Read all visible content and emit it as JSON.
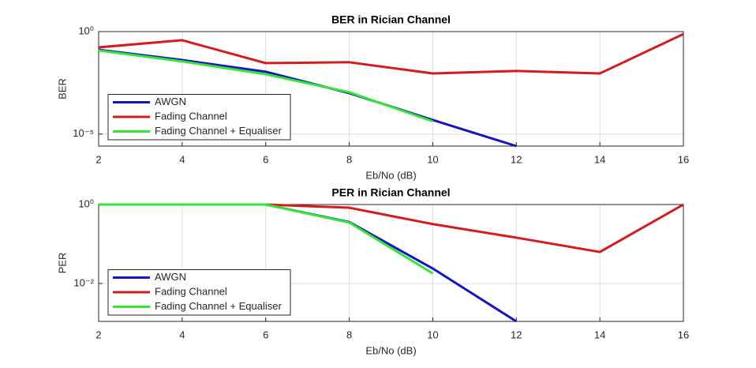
{
  "chart_data": [
    {
      "type": "line",
      "title": "BER in Rician Channel",
      "x_label": "Eb/No (dB)",
      "y_label": "BER",
      "yscale": "log",
      "grid": true,
      "legend": "lower left",
      "xlim": [
        2,
        16
      ],
      "xticks": [
        2,
        4,
        6,
        8,
        10,
        12,
        14,
        16
      ],
      "ylim": [
        2.6e-06,
        1
      ],
      "yticks": [
        {
          "value": 1e-05,
          "label": "10⁻⁵"
        },
        {
          "value": 1,
          "label": "10⁰"
        }
      ],
      "series": [
        {
          "name": "AWGN",
          "color": "#1414c4",
          "x": [
            2,
            4,
            6,
            8,
            10,
            12
          ],
          "values": [
            0.13,
            0.041,
            0.011,
            0.001,
            4.9e-05,
            2.6e-06
          ]
        },
        {
          "name": "Fading Channel",
          "color": "#d41c1c",
          "x": [
            2,
            4,
            6,
            8,
            10,
            12,
            14,
            16
          ],
          "values": [
            0.17,
            0.38,
            0.029,
            0.032,
            0.0091,
            0.012,
            0.0091,
            0.76
          ]
        },
        {
          "name": "Fading Channel + Equaliser",
          "color": "#33e633",
          "x": [
            2,
            4,
            6,
            8,
            10
          ],
          "values": [
            0.12,
            0.035,
            0.0083,
            0.0011,
            4.2e-05
          ]
        }
      ]
    },
    {
      "type": "line",
      "title": "PER in Rician Channel",
      "x_label": "Eb/No (dB)",
      "y_label": "PER",
      "yscale": "log",
      "grid": true,
      "legend": "lower left",
      "xlim": [
        2,
        16
      ],
      "xticks": [
        2,
        4,
        6,
        8,
        10,
        12,
        14,
        16
      ],
      "ylim": [
        0.0011,
        1
      ],
      "yticks": [
        {
          "value": 0.01,
          "label": "10⁻²"
        },
        {
          "value": 1,
          "label": "10⁰"
        }
      ],
      "series": [
        {
          "name": "AWGN",
          "color": "#1414c4",
          "x": [
            2,
            4,
            6,
            8,
            10,
            12
          ],
          "values": [
            1,
            1,
            1,
            0.36,
            0.024,
            0.0011
          ]
        },
        {
          "name": "Fading Channel",
          "color": "#d41c1c",
          "x": [
            2,
            4,
            6,
            8,
            10,
            12,
            14,
            16
          ],
          "values": [
            1,
            1,
            1,
            0.83,
            0.32,
            0.145,
            0.063,
            1
          ]
        },
        {
          "name": "Fading Channel + Equaliser",
          "color": "#33e633",
          "x": [
            2,
            4,
            6,
            8,
            10
          ],
          "values": [
            1,
            1,
            1,
            0.35,
            0.018
          ]
        }
      ]
    }
  ]
}
